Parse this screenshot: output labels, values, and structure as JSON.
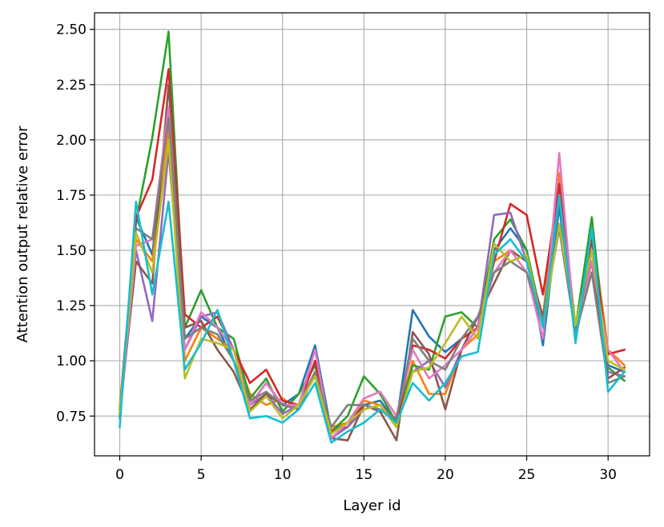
{
  "chart_data": {
    "type": "line",
    "title": "",
    "xlabel": "Layer id",
    "ylabel": "Attention output relative error",
    "xlim": [
      -1.55,
      32.55
    ],
    "ylim": [
      0.57,
      2.575
    ],
    "xticks": [
      0,
      5,
      10,
      15,
      20,
      25,
      30
    ],
    "xtick_labels": [
      "0",
      "5",
      "10",
      "15",
      "20",
      "25",
      "30"
    ],
    "yticks": [
      0.75,
      1.0,
      1.25,
      1.5,
      1.75,
      2.0,
      2.25,
      2.5
    ],
    "ytick_labels": [
      "0.75",
      "1.00",
      "1.25",
      "1.50",
      "1.75",
      "2.00",
      "2.25",
      "2.50"
    ],
    "grid": true,
    "legend": "none",
    "x": [
      0,
      1,
      2,
      3,
      4,
      5,
      6,
      7,
      8,
      9,
      10,
      11,
      12,
      13,
      14,
      15,
      16,
      17,
      18,
      19,
      20,
      21,
      22,
      23,
      24,
      25,
      26,
      27,
      28,
      29,
      30,
      31
    ],
    "series": [
      {
        "color": "#1f77b4",
        "values": [
          0.74,
          1.65,
          1.48,
          2.15,
          1.1,
          1.2,
          1.15,
          1.0,
          0.8,
          0.9,
          0.8,
          0.85,
          1.07,
          0.68,
          0.72,
          0.8,
          0.82,
          0.72,
          1.23,
          1.11,
          1.04,
          1.1,
          1.15,
          1.5,
          1.6,
          1.5,
          1.07,
          1.7,
          1.1,
          1.55,
          0.98,
          0.95
        ]
      },
      {
        "color": "#ff7f0e",
        "values": [
          0.78,
          1.55,
          1.45,
          2.05,
          1.0,
          1.15,
          1.1,
          1.05,
          0.85,
          0.8,
          0.83,
          0.78,
          0.95,
          0.7,
          0.72,
          0.82,
          0.8,
          0.72,
          1.0,
          0.85,
          0.85,
          1.05,
          1.12,
          1.45,
          1.5,
          1.45,
          1.2,
          1.85,
          1.15,
          1.6,
          1.05,
          0.98
        ]
      },
      {
        "color": "#2ca02c",
        "values": [
          0.78,
          1.63,
          2.01,
          2.49,
          1.15,
          1.32,
          1.15,
          1.1,
          0.83,
          0.92,
          0.77,
          0.85,
          0.98,
          0.68,
          0.75,
          0.93,
          0.85,
          0.72,
          0.98,
          0.96,
          1.2,
          1.22,
          1.15,
          1.55,
          1.64,
          1.5,
          1.17,
          1.8,
          1.15,
          1.65,
          0.97,
          0.91
        ]
      },
      {
        "color": "#d62728",
        "values": [
          0.76,
          1.65,
          1.82,
          2.32,
          1.21,
          1.15,
          1.2,
          1.05,
          0.9,
          0.96,
          0.82,
          0.8,
          1.0,
          0.68,
          0.7,
          0.8,
          0.78,
          0.72,
          1.07,
          1.05,
          1.01,
          1.1,
          1.15,
          1.45,
          1.71,
          1.66,
          1.3,
          1.8,
          1.1,
          1.55,
          1.03,
          1.05
        ]
      },
      {
        "color": "#9467bd",
        "values": [
          0.74,
          1.5,
          1.18,
          1.95,
          1.05,
          1.2,
          1.22,
          1.05,
          0.8,
          0.85,
          0.76,
          0.8,
          0.95,
          0.65,
          0.7,
          0.78,
          0.8,
          0.7,
          0.95,
          1.0,
          0.88,
          1.05,
          1.15,
          1.66,
          1.67,
          1.45,
          1.15,
          1.75,
          1.1,
          1.5,
          0.95,
          0.93
        ]
      },
      {
        "color": "#8c564b",
        "values": [
          0.76,
          1.45,
          1.35,
          2.25,
          1.15,
          1.18,
          1.05,
          0.95,
          0.78,
          0.85,
          0.8,
          0.78,
          0.95,
          0.65,
          0.64,
          0.8,
          0.77,
          0.64,
          1.13,
          1.03,
          0.78,
          1.05,
          1.2,
          1.35,
          1.5,
          1.45,
          1.2,
          1.6,
          1.15,
          1.45,
          0.92,
          0.97
        ]
      },
      {
        "color": "#e377c2",
        "values": [
          0.74,
          1.52,
          1.55,
          2.15,
          1.05,
          1.22,
          1.15,
          1.05,
          0.8,
          0.9,
          0.8,
          0.8,
          1.05,
          0.65,
          0.72,
          0.83,
          0.86,
          0.75,
          1.05,
          0.92,
          0.98,
          1.05,
          1.15,
          1.4,
          1.5,
          1.4,
          1.1,
          1.94,
          1.1,
          1.45,
          1.05,
          0.95
        ]
      },
      {
        "color": "#7f7f7f",
        "values": [
          0.75,
          1.6,
          1.55,
          2.1,
          1.1,
          1.15,
          1.12,
          1.0,
          0.82,
          0.86,
          0.8,
          0.78,
          0.95,
          0.7,
          0.8,
          0.8,
          0.78,
          0.74,
          1.1,
          1.0,
          0.96,
          1.1,
          1.2,
          1.4,
          1.45,
          1.4,
          1.18,
          1.6,
          1.12,
          1.4,
          0.9,
          0.93
        ]
      },
      {
        "color": "#bcbd22",
        "values": [
          0.76,
          1.58,
          1.4,
          2.0,
          0.92,
          1.1,
          1.08,
          1.05,
          0.77,
          0.84,
          0.74,
          0.8,
          0.93,
          0.67,
          0.72,
          0.78,
          0.8,
          0.7,
          0.95,
          0.97,
          1.08,
          1.2,
          1.1,
          1.53,
          1.45,
          1.48,
          1.15,
          1.62,
          1.16,
          1.5,
          1.0,
          0.96
        ]
      },
      {
        "color": "#17becf",
        "values": [
          0.7,
          1.72,
          1.3,
          1.72,
          0.96,
          1.08,
          1.23,
          1.0,
          0.74,
          0.75,
          0.72,
          0.78,
          0.9,
          0.63,
          0.68,
          0.72,
          0.78,
          0.72,
          0.9,
          0.82,
          0.9,
          1.02,
          1.04,
          1.48,
          1.55,
          1.45,
          1.15,
          1.75,
          1.08,
          1.6,
          0.86,
          0.95
        ]
      }
    ]
  }
}
